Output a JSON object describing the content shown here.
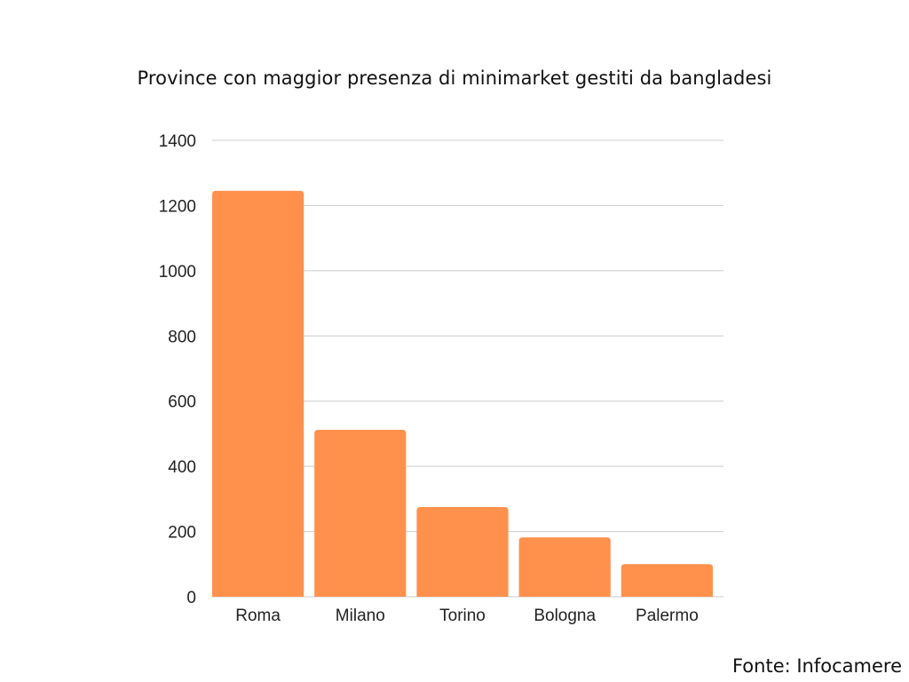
{
  "chart_data": {
    "type": "bar",
    "title": "Province con maggior presenza di minimarket gestiti da bangladesi",
    "xlabel": "",
    "ylabel": "",
    "categories": [
      "Roma",
      "Milano",
      "Torino",
      "Bologna",
      "Palermo"
    ],
    "values": [
      1245,
      512,
      275,
      182,
      100
    ],
    "ylim": [
      0,
      1400
    ],
    "yticks": [
      0,
      200,
      400,
      600,
      800,
      1000,
      1200,
      1400
    ],
    "grid": true,
    "legend": "none",
    "bar_color": "#FF914D",
    "grid_color": "#CCCCCC"
  },
  "source_note": "Fonte: Infocamere"
}
